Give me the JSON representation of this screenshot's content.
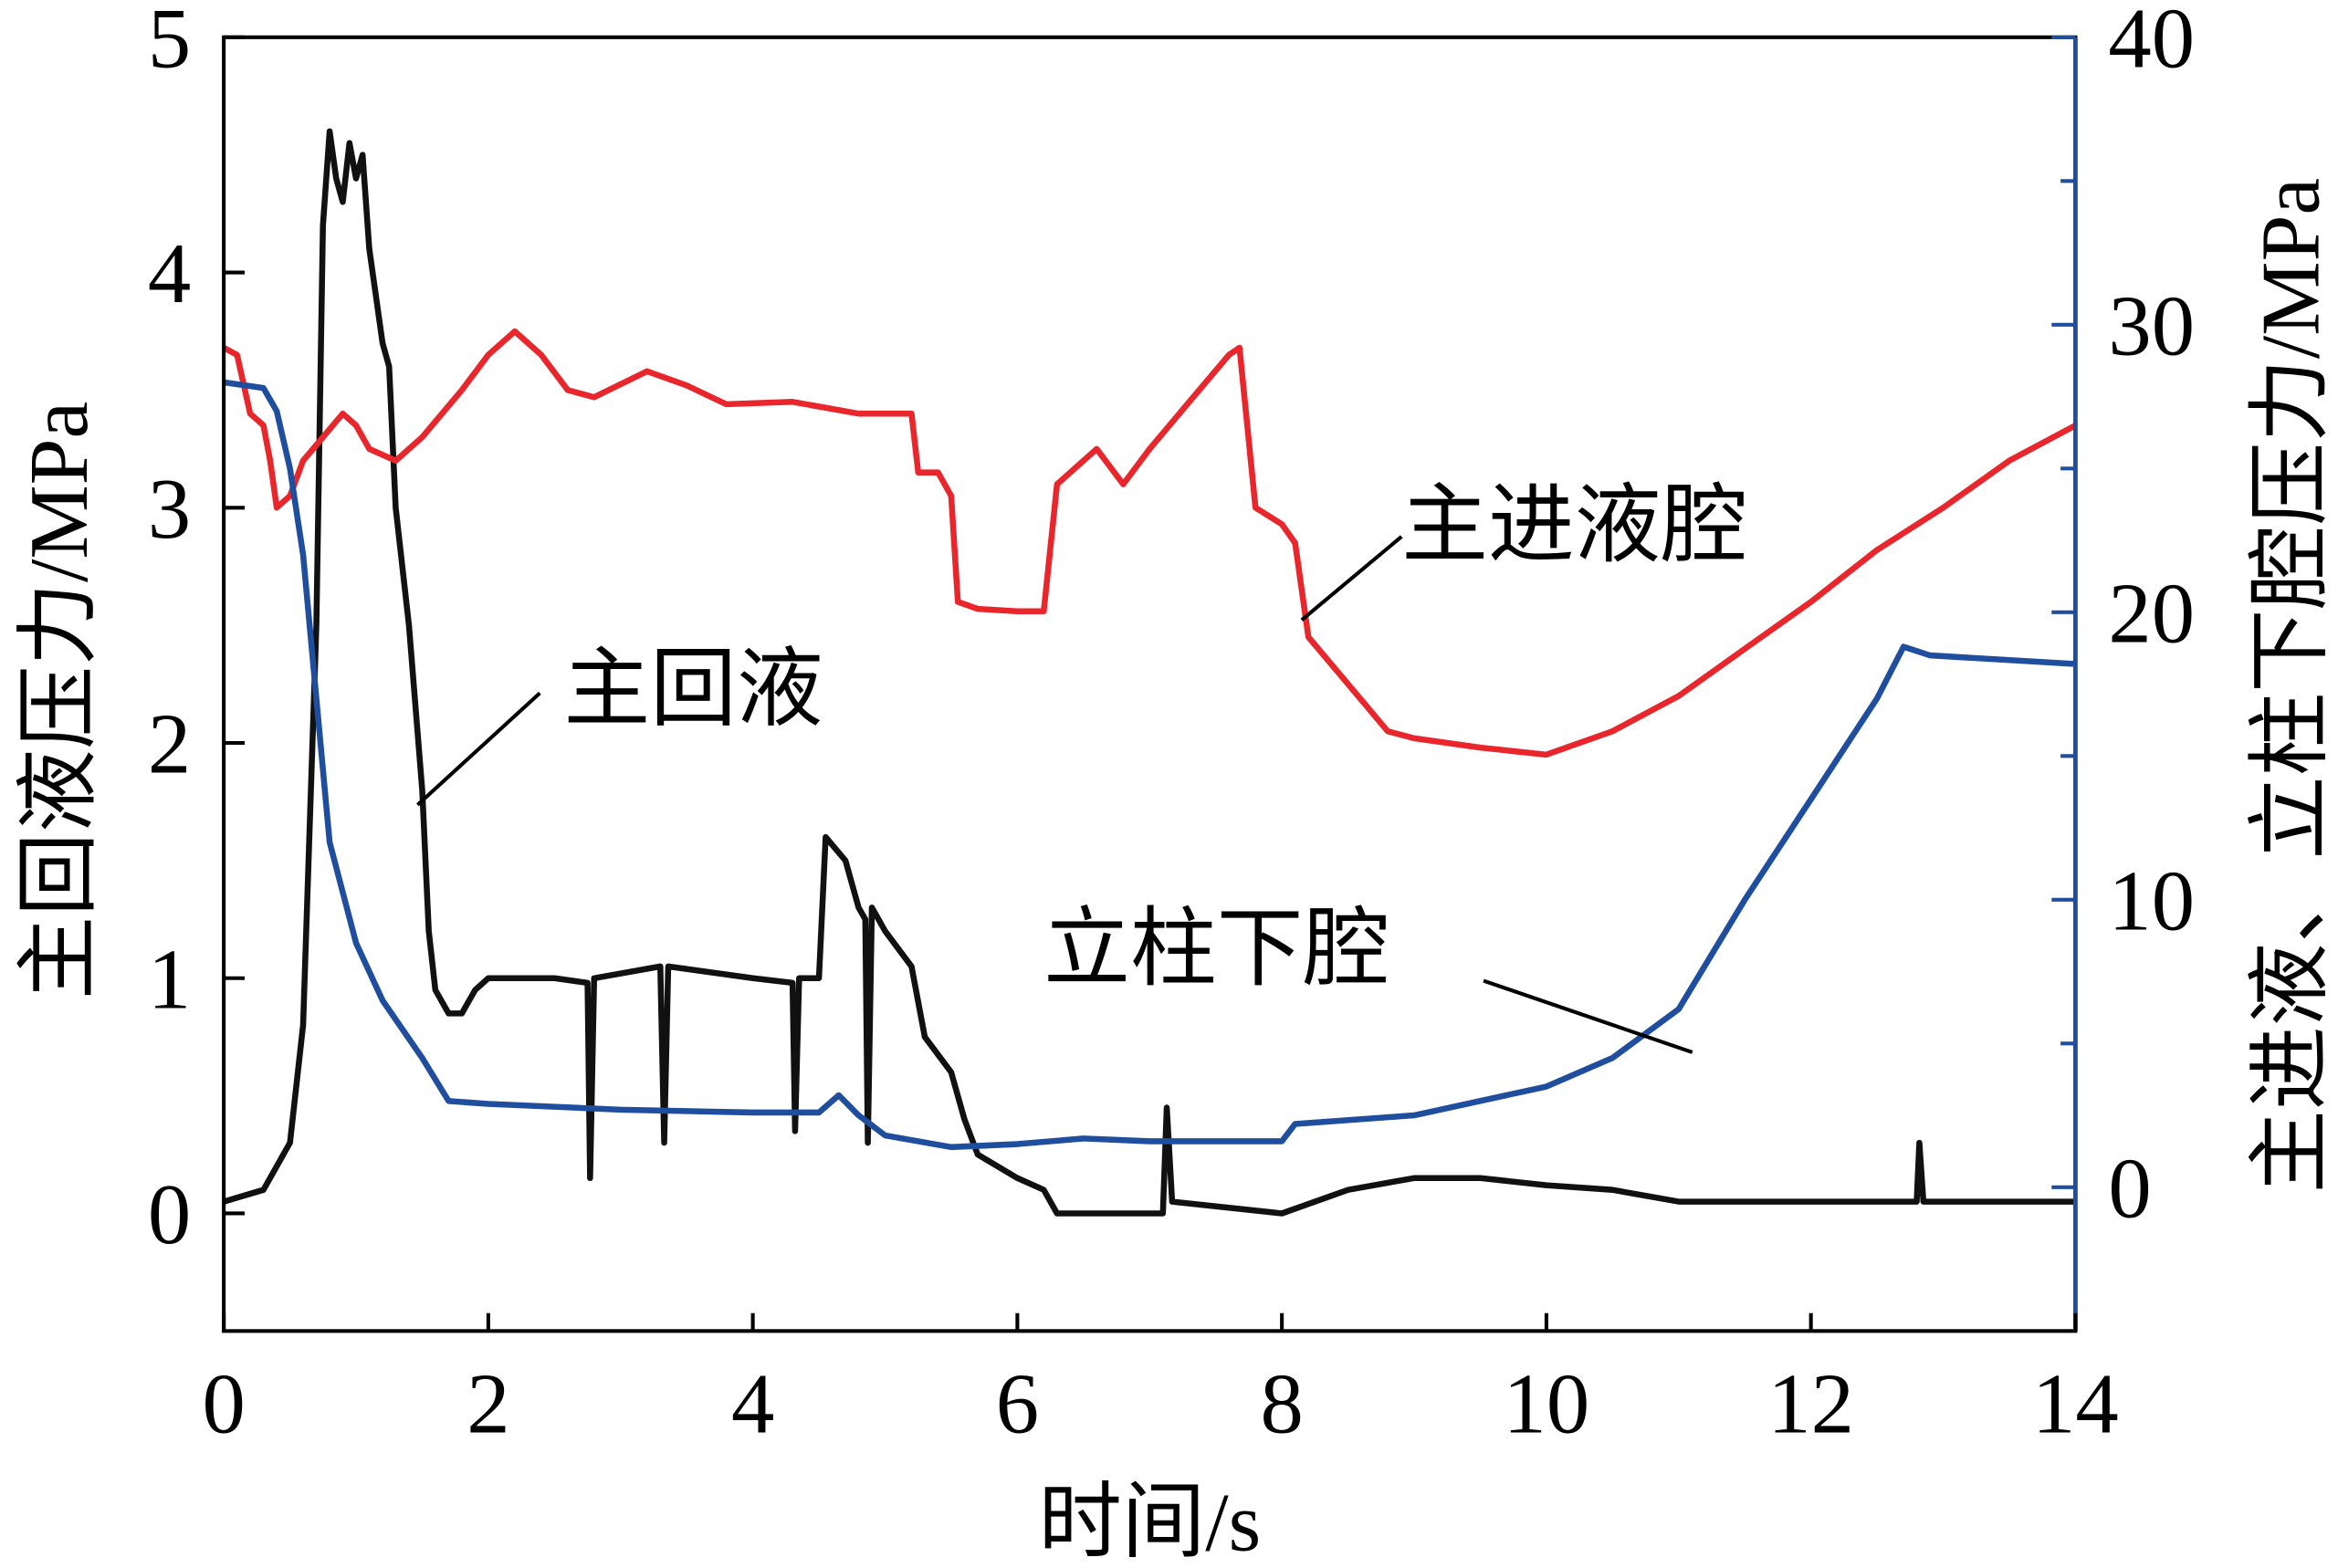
{
  "chart_data": {
    "type": "line",
    "xlabel": "时间/s",
    "ylabel_left": "主回液压力/MPa",
    "ylabel_right": "主进液、立柱下腔压力/MPa",
    "xlim": [
      0,
      14
    ],
    "ylim_left": [
      -0.5,
      5
    ],
    "ylim_right": [
      -5,
      40
    ],
    "x_ticks": [
      0,
      2,
      4,
      6,
      8,
      10,
      12,
      14
    ],
    "y_left_ticks": [
      0,
      1,
      2,
      3,
      4,
      5
    ],
    "y_right_ticks": [
      0,
      10,
      20,
      30,
      40
    ],
    "grid": false,
    "colors": {
      "axis_left": "#000000",
      "axis_right": "#1f4e9e"
    },
    "series": [
      {
        "name": "主回液",
        "axis": "left",
        "color": "#111111",
        "x": [
          0,
          0.3,
          0.5,
          0.6,
          0.7,
          0.75,
          0.8,
          0.85,
          0.9,
          0.95,
          1.0,
          1.05,
          1.1,
          1.2,
          1.25,
          1.3,
          1.4,
          1.5,
          1.55,
          1.6,
          1.7,
          1.8,
          1.9,
          2.0,
          2.5,
          2.75,
          2.77,
          2.8,
          3.3,
          3.33,
          3.36,
          4.0,
          4.3,
          4.32,
          4.35,
          4.5,
          4.55,
          4.7,
          4.8,
          4.85,
          4.87,
          4.9,
          5.0,
          5.2,
          5.3,
          5.5,
          5.6,
          5.7,
          6.0,
          6.2,
          6.3,
          7.1,
          7.13,
          7.17,
          8.0,
          8.5,
          9.0,
          9.5,
          10,
          10.5,
          11,
          12,
          12.8,
          12.82,
          12.85,
          14
        ],
        "y": [
          0.05,
          0.1,
          0.3,
          0.8,
          2.5,
          4.2,
          4.6,
          4.4,
          4.3,
          4.55,
          4.4,
          4.5,
          4.1,
          3.7,
          3.6,
          3.0,
          2.5,
          1.8,
          1.2,
          0.95,
          0.85,
          0.85,
          0.95,
          1.0,
          1.0,
          0.98,
          0.15,
          1.0,
          1.05,
          0.3,
          1.05,
          1.0,
          0.98,
          0.35,
          1.0,
          1.0,
          1.6,
          1.5,
          1.3,
          1.25,
          0.3,
          1.3,
          1.2,
          1.05,
          0.75,
          0.6,
          0.4,
          0.25,
          0.15,
          0.1,
          0.0,
          0.0,
          0.45,
          0.05,
          0.0,
          0.1,
          0.15,
          0.15,
          0.12,
          0.1,
          0.05,
          0.05,
          0.05,
          0.3,
          0.05,
          0.05
        ]
      },
      {
        "name": "主进液腔",
        "axis": "left",
        "color": "#e8262b",
        "x": [
          0,
          0.1,
          0.2,
          0.3,
          0.35,
          0.4,
          0.5,
          0.6,
          0.75,
          0.9,
          1.0,
          1.1,
          1.3,
          1.5,
          1.8,
          2.0,
          2.2,
          2.4,
          2.6,
          2.8,
          3.2,
          3.5,
          3.8,
          4.3,
          4.8,
          5.2,
          5.25,
          5.4,
          5.5,
          5.55,
          5.7,
          6.0,
          6.2,
          6.3,
          6.5,
          6.6,
          6.8,
          7.0,
          7.3,
          7.6,
          7.68,
          7.8,
          8.0,
          8.1,
          8.2,
          8.5,
          8.8,
          9.0,
          9.5,
          10,
          10.5,
          11,
          11.5,
          12,
          12.5,
          13,
          13.5,
          14
        ],
        "y": [
          3.68,
          3.65,
          3.4,
          3.35,
          3.2,
          3.0,
          3.05,
          3.2,
          3.3,
          3.4,
          3.35,
          3.25,
          3.2,
          3.3,
          3.5,
          3.65,
          3.75,
          3.65,
          3.5,
          3.47,
          3.58,
          3.52,
          3.44,
          3.45,
          3.4,
          3.4,
          3.15,
          3.15,
          3.05,
          2.6,
          2.57,
          2.56,
          2.56,
          3.1,
          3.2,
          3.25,
          3.1,
          3.25,
          3.45,
          3.65,
          3.68,
          3.0,
          2.93,
          2.85,
          2.45,
          2.25,
          2.05,
          2.02,
          1.98,
          1.95,
          2.05,
          2.2,
          2.4,
          2.6,
          2.82,
          3.0,
          3.2,
          3.35
        ]
      },
      {
        "name": "立柱下腔",
        "axis": "right",
        "color": "#1f4e9e",
        "x": [
          0,
          0.3,
          0.4,
          0.5,
          0.6,
          0.7,
          0.8,
          1.0,
          1.2,
          1.5,
          1.7,
          2.0,
          3.0,
          4.0,
          4.5,
          4.65,
          4.8,
          5.0,
          5.5,
          6.0,
          6.5,
          7.0,
          8.0,
          8.1,
          9.0,
          10,
          10.5,
          11,
          11.5,
          12,
          12.5,
          12.7,
          12.9,
          14
        ],
        "y": [
          28.0,
          27.8,
          27.0,
          25,
          22,
          17,
          12,
          8.5,
          6.5,
          4.5,
          3.0,
          2.9,
          2.7,
          2.6,
          2.6,
          3.2,
          2.5,
          1.8,
          1.4,
          1.5,
          1.7,
          1.6,
          1.6,
          2.2,
          2.5,
          3.5,
          4.5,
          6.2,
          10,
          13.5,
          17.0,
          18.8,
          18.5,
          18.2
        ]
      }
    ],
    "annotations": [
      "主进液腔",
      "主回液",
      "立柱下腔"
    ]
  }
}
